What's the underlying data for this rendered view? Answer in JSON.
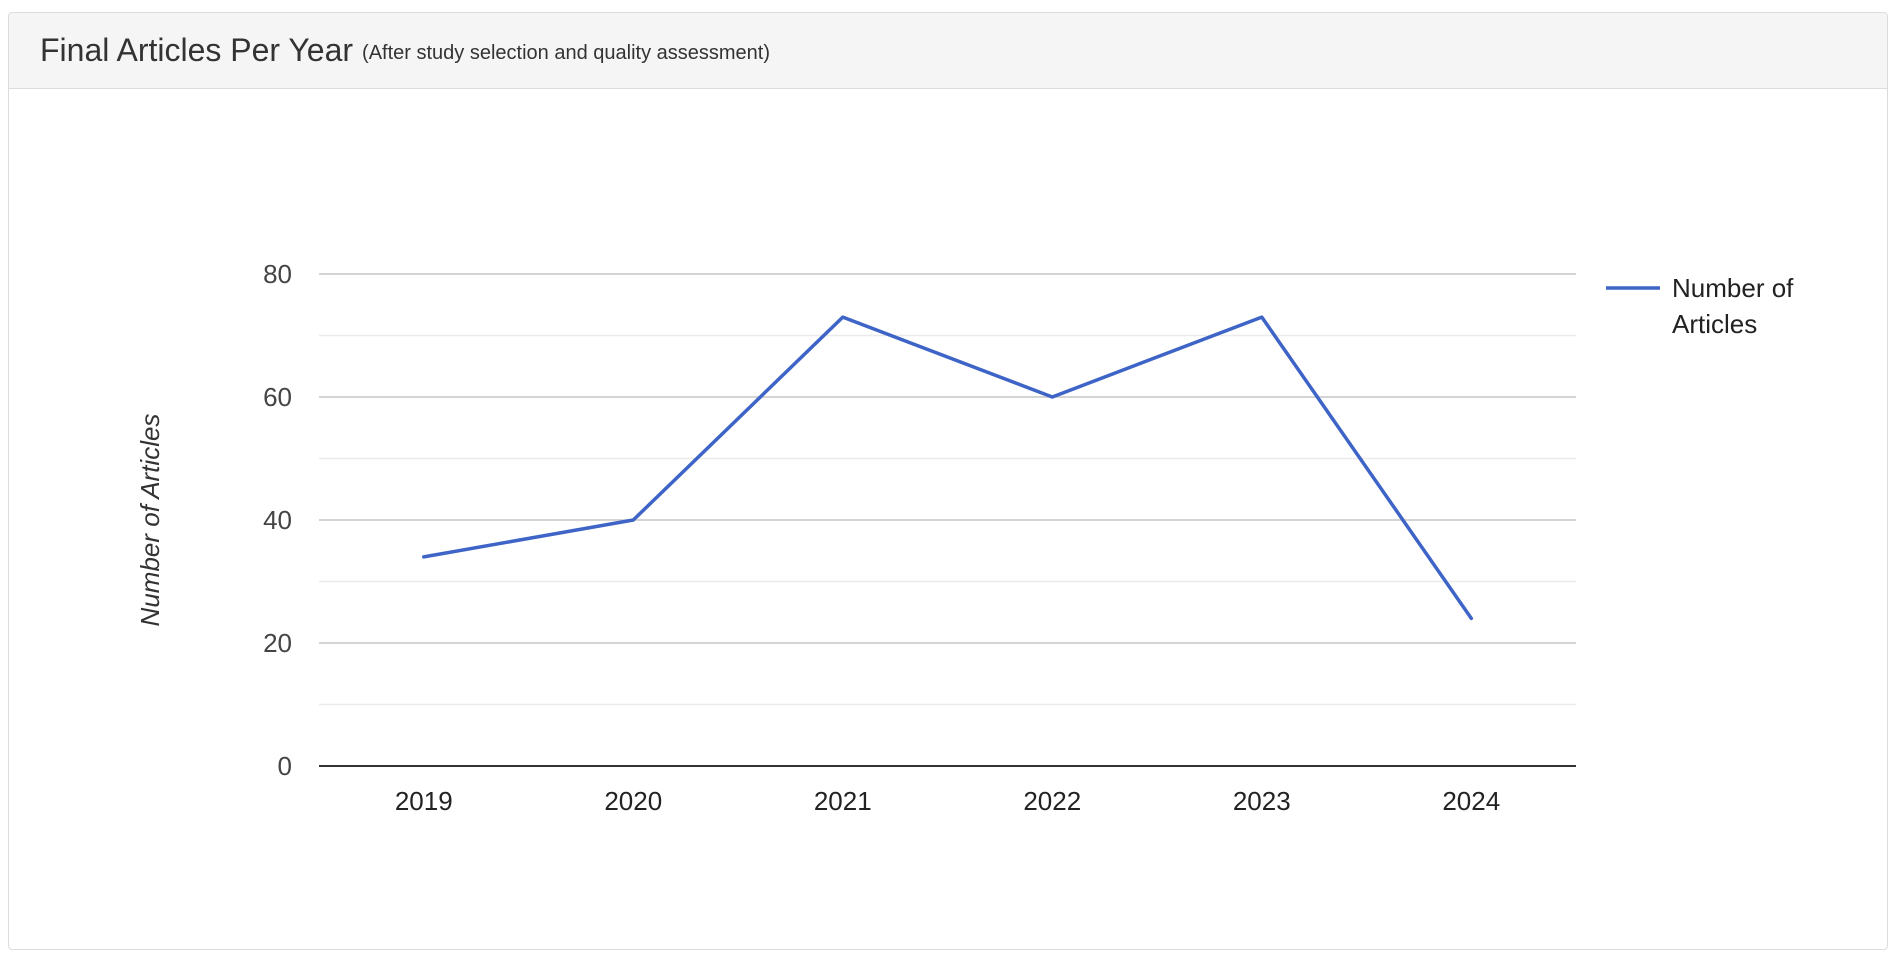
{
  "panel": {
    "title": "Final Articles Per Year",
    "subtitle": "(After study selection and quality assessment)"
  },
  "chart_data": {
    "type": "line",
    "title": "",
    "xlabel": "",
    "ylabel": "Number of Articles",
    "categories": [
      "2019",
      "2020",
      "2021",
      "2022",
      "2023",
      "2024"
    ],
    "series": [
      {
        "name": "Number of Articles",
        "values": [
          34,
          40,
          73,
          60,
          73,
          24
        ],
        "color": "#3d64c6"
      }
    ],
    "ylim": [
      0,
      80
    ],
    "yticks": [
      0,
      20,
      40,
      60,
      80
    ],
    "ytick_labels": [
      "0",
      "20",
      "40",
      "60",
      "80"
    ],
    "grid": true,
    "legend_position": "right",
    "legend_lines": [
      "Number of",
      "Articles"
    ]
  }
}
